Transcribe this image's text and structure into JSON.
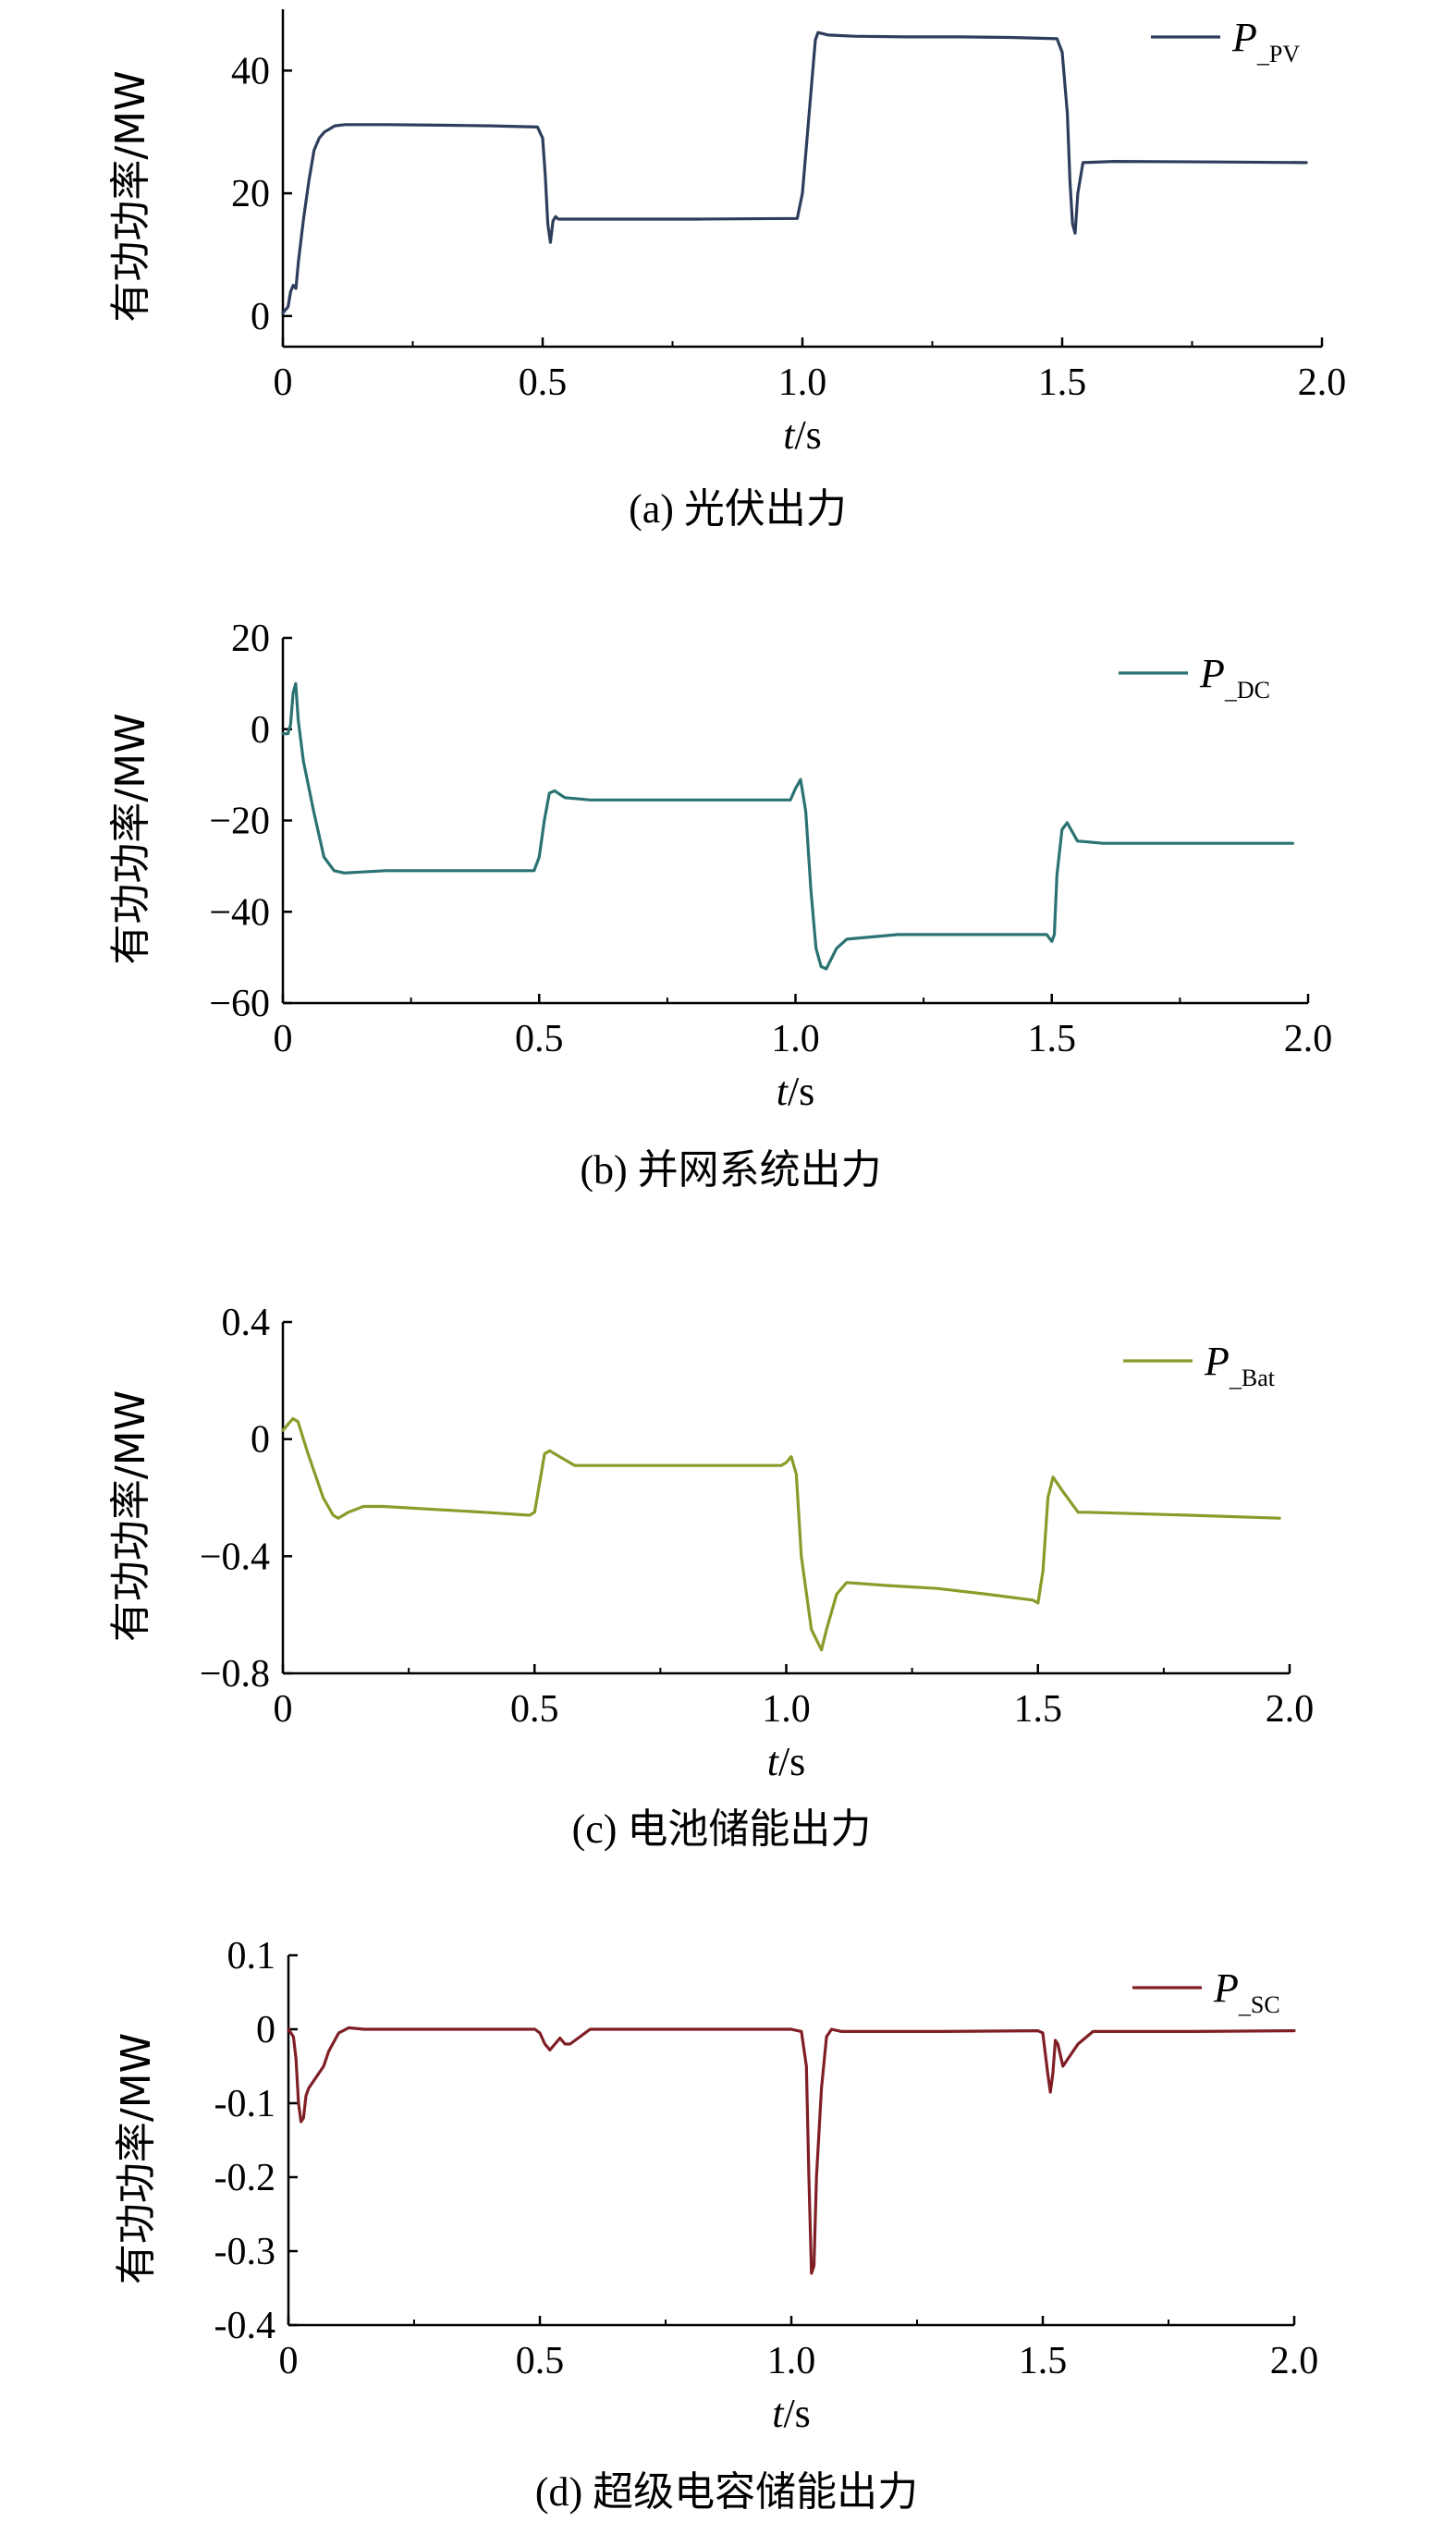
{
  "chart_data": [
    {
      "type": "line",
      "caption": "(a) 光伏出力",
      "ylabel": "有功功率/MW",
      "xlabel_var": "t",
      "xlabel_unit": "/s",
      "xlim": [
        0,
        2.0
      ],
      "ylim": [
        -5,
        50
      ],
      "xticks": [
        "0",
        "0.5",
        "1.0",
        "1.5",
        "2.0"
      ],
      "xtick_values": [
        0,
        0.5,
        1.0,
        1.5,
        2.0
      ],
      "yticks": [
        "0",
        "20",
        "40"
      ],
      "ytick_values": [
        0,
        20,
        40
      ],
      "series": [
        {
          "name_main": "P",
          "name_sub": "_PV",
          "color": "#2e3d5c",
          "x": [
            0,
            0.01,
            0.015,
            0.02,
            0.025,
            0.03,
            0.04,
            0.05,
            0.06,
            0.07,
            0.08,
            0.1,
            0.12,
            0.2,
            0.3,
            0.4,
            0.49,
            0.5,
            0.505,
            0.51,
            0.515,
            0.52,
            0.525,
            0.53,
            0.6,
            0.8,
            0.99,
            1.0,
            1.01,
            1.02,
            1.025,
            1.03,
            1.05,
            1.1,
            1.2,
            1.3,
            1.4,
            1.49,
            1.5,
            1.51,
            1.515,
            1.52,
            1.525,
            1.53,
            1.54,
            1.6,
            1.8,
            1.97
          ],
          "values": [
            0.5,
            1.5,
            4,
            5,
            4.5,
            9,
            16,
            22,
            27,
            29,
            30,
            31,
            31.2,
            31.2,
            31.1,
            31,
            30.8,
            29,
            23,
            15,
            12,
            15.5,
            16.2,
            15.8,
            15.8,
            15.8,
            15.9,
            20,
            30,
            40,
            45,
            46.2,
            45.8,
            45.6,
            45.5,
            45.5,
            45.4,
            45.2,
            43,
            33,
            22,
            15,
            13.5,
            20,
            25,
            25.2,
            25.1,
            25
          ]
        }
      ]
    },
    {
      "type": "line",
      "caption": "(b) 并网系统出力",
      "ylabel": "有功功率/MW",
      "xlabel_var": "t",
      "xlabel_unit": "/s",
      "xlim": [
        0,
        2.0
      ],
      "ylim": [
        -60,
        20
      ],
      "xticks": [
        "0",
        "0.5",
        "1.0",
        "1.5",
        "2.0"
      ],
      "xtick_values": [
        0,
        0.5,
        1.0,
        1.5,
        2.0
      ],
      "yticks": [
        "20",
        "0",
        "−20",
        "−40",
        "−60"
      ],
      "ytick_values": [
        20,
        0,
        -20,
        -40,
        -60
      ],
      "series": [
        {
          "name_main": "P",
          "name_sub": "_DC",
          "color": "#2b7272",
          "x": [
            0,
            0.01,
            0.015,
            0.02,
            0.025,
            0.03,
            0.04,
            0.06,
            0.08,
            0.1,
            0.12,
            0.2,
            0.3,
            0.4,
            0.49,
            0.5,
            0.51,
            0.52,
            0.53,
            0.55,
            0.6,
            0.8,
            0.99,
            1.0,
            1.01,
            1.02,
            1.03,
            1.04,
            1.05,
            1.06,
            1.08,
            1.1,
            1.2,
            1.3,
            1.4,
            1.49,
            1.5,
            1.505,
            1.51,
            1.52,
            1.53,
            1.55,
            1.6,
            1.8,
            1.97
          ],
          "values": [
            -1,
            -1,
            1,
            8,
            10,
            2,
            -7,
            -18,
            -28,
            -31,
            -31.5,
            -31,
            -31,
            -31,
            -31,
            -28,
            -20,
            -14,
            -13.5,
            -15,
            -15.5,
            -15.5,
            -15.5,
            -13,
            -11,
            -18,
            -35,
            -48,
            -52,
            -52.5,
            -48,
            -46,
            -45,
            -45,
            -45,
            -45,
            -46.5,
            -45,
            -32,
            -22,
            -20.5,
            -24.5,
            -25,
            -25,
            -25
          ]
        }
      ]
    },
    {
      "type": "line",
      "caption": "(c) 电池储能出力",
      "ylabel": "有功功率/MW",
      "xlabel_var": "t",
      "xlabel_unit": "/s",
      "xlim": [
        0,
        2.0
      ],
      "ylim": [
        -0.8,
        0.4
      ],
      "xticks": [
        "0",
        "0.5",
        "1.0",
        "1.5",
        "2.0"
      ],
      "xtick_values": [
        0,
        0.5,
        1.0,
        1.5,
        2.0
      ],
      "yticks": [
        "0.4",
        "0",
        "−0.4",
        "−0.8"
      ],
      "ytick_values": [
        0.4,
        0,
        -0.4,
        -0.8
      ],
      "series": [
        {
          "name_main": "P",
          "name_sub": "_Bat",
          "color": "#8c9a2a",
          "x": [
            0,
            0.01,
            0.02,
            0.03,
            0.05,
            0.08,
            0.1,
            0.11,
            0.13,
            0.16,
            0.2,
            0.3,
            0.4,
            0.49,
            0.5,
            0.51,
            0.52,
            0.53,
            0.55,
            0.58,
            0.6,
            0.8,
            0.99,
            1.0,
            1.01,
            1.02,
            1.03,
            1.05,
            1.07,
            1.08,
            1.1,
            1.12,
            1.2,
            1.3,
            1.4,
            1.49,
            1.5,
            1.51,
            1.52,
            1.53,
            1.55,
            1.58,
            1.6,
            1.8,
            1.98
          ],
          "values": [
            0.03,
            0.05,
            0.07,
            0.06,
            -0.05,
            -0.2,
            -0.26,
            -0.27,
            -0.25,
            -0.23,
            -0.23,
            -0.24,
            -0.25,
            -0.26,
            -0.25,
            -0.15,
            -0.05,
            -0.04,
            -0.06,
            -0.09,
            -0.09,
            -0.09,
            -0.09,
            -0.08,
            -0.06,
            -0.12,
            -0.4,
            -0.65,
            -0.72,
            -0.65,
            -0.53,
            -0.49,
            -0.5,
            -0.51,
            -0.53,
            -0.55,
            -0.56,
            -0.45,
            -0.2,
            -0.13,
            -0.18,
            -0.25,
            -0.25,
            -0.26,
            -0.27
          ]
        }
      ]
    },
    {
      "type": "line",
      "caption": "(d) 超级电容储能出力",
      "ylabel": "有功功率/MW",
      "xlabel_var": "t",
      "xlabel_unit": "/s",
      "xlim": [
        0,
        2.0
      ],
      "ylim": [
        -0.4,
        0.1
      ],
      "xticks": [
        "0",
        "0.5",
        "1.0",
        "1.5",
        "2.0"
      ],
      "xtick_values": [
        0,
        0.5,
        1.0,
        1.5,
        2.0
      ],
      "yticks": [
        "0.1",
        "0",
        "-0.1",
        "-0.2",
        "-0.3",
        "-0.4"
      ],
      "ytick_values": [
        0.1,
        0,
        -0.1,
        -0.2,
        -0.3,
        -0.4
      ],
      "series": [
        {
          "name_main": "P",
          "name_sub": "_SC",
          "color": "#7f1f25",
          "x": [
            0,
            0.01,
            0.015,
            0.02,
            0.025,
            0.03,
            0.035,
            0.04,
            0.05,
            0.07,
            0.08,
            0.1,
            0.12,
            0.15,
            0.3,
            0.49,
            0.5,
            0.51,
            0.52,
            0.53,
            0.54,
            0.55,
            0.56,
            0.57,
            0.6,
            0.8,
            1.0,
            1.02,
            1.03,
            1.035,
            1.04,
            1.045,
            1.05,
            1.06,
            1.07,
            1.08,
            1.1,
            1.3,
            1.49,
            1.5,
            1.51,
            1.515,
            1.52,
            1.525,
            1.53,
            1.54,
            1.55,
            1.57,
            1.6,
            1.8,
            2.0
          ],
          "values": [
            0,
            -0.01,
            -0.04,
            -0.1,
            -0.125,
            -0.12,
            -0.09,
            -0.08,
            -0.07,
            -0.05,
            -0.03,
            -0.005,
            0.002,
            0,
            0,
            0,
            -0.005,
            -0.02,
            -0.028,
            -0.02,
            -0.012,
            -0.02,
            -0.02,
            -0.015,
            0,
            0,
            0,
            -0.003,
            -0.05,
            -0.2,
            -0.33,
            -0.32,
            -0.2,
            -0.08,
            -0.01,
            0,
            -0.003,
            -0.003,
            -0.002,
            -0.005,
            -0.06,
            -0.085,
            -0.06,
            -0.015,
            -0.02,
            -0.05,
            -0.04,
            -0.02,
            -0.003,
            -0.003,
            -0.002
          ]
        }
      ]
    }
  ]
}
